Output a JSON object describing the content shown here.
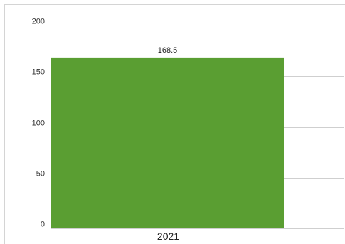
{
  "chart_data": {
    "type": "bar",
    "categories": [
      "2021"
    ],
    "values": [
      168.5
    ],
    "data_labels": [
      "168.5"
    ],
    "title": "",
    "xlabel": "",
    "ylabel": "",
    "ylim": [
      0,
      200
    ],
    "y_ticks": [
      "0",
      "50",
      "100",
      "150",
      "200"
    ],
    "grid": true,
    "legend": "none",
    "bar_color": "#5a9e32",
    "gridline_color": "#cfcfcf",
    "background_color": "#ffffff"
  }
}
